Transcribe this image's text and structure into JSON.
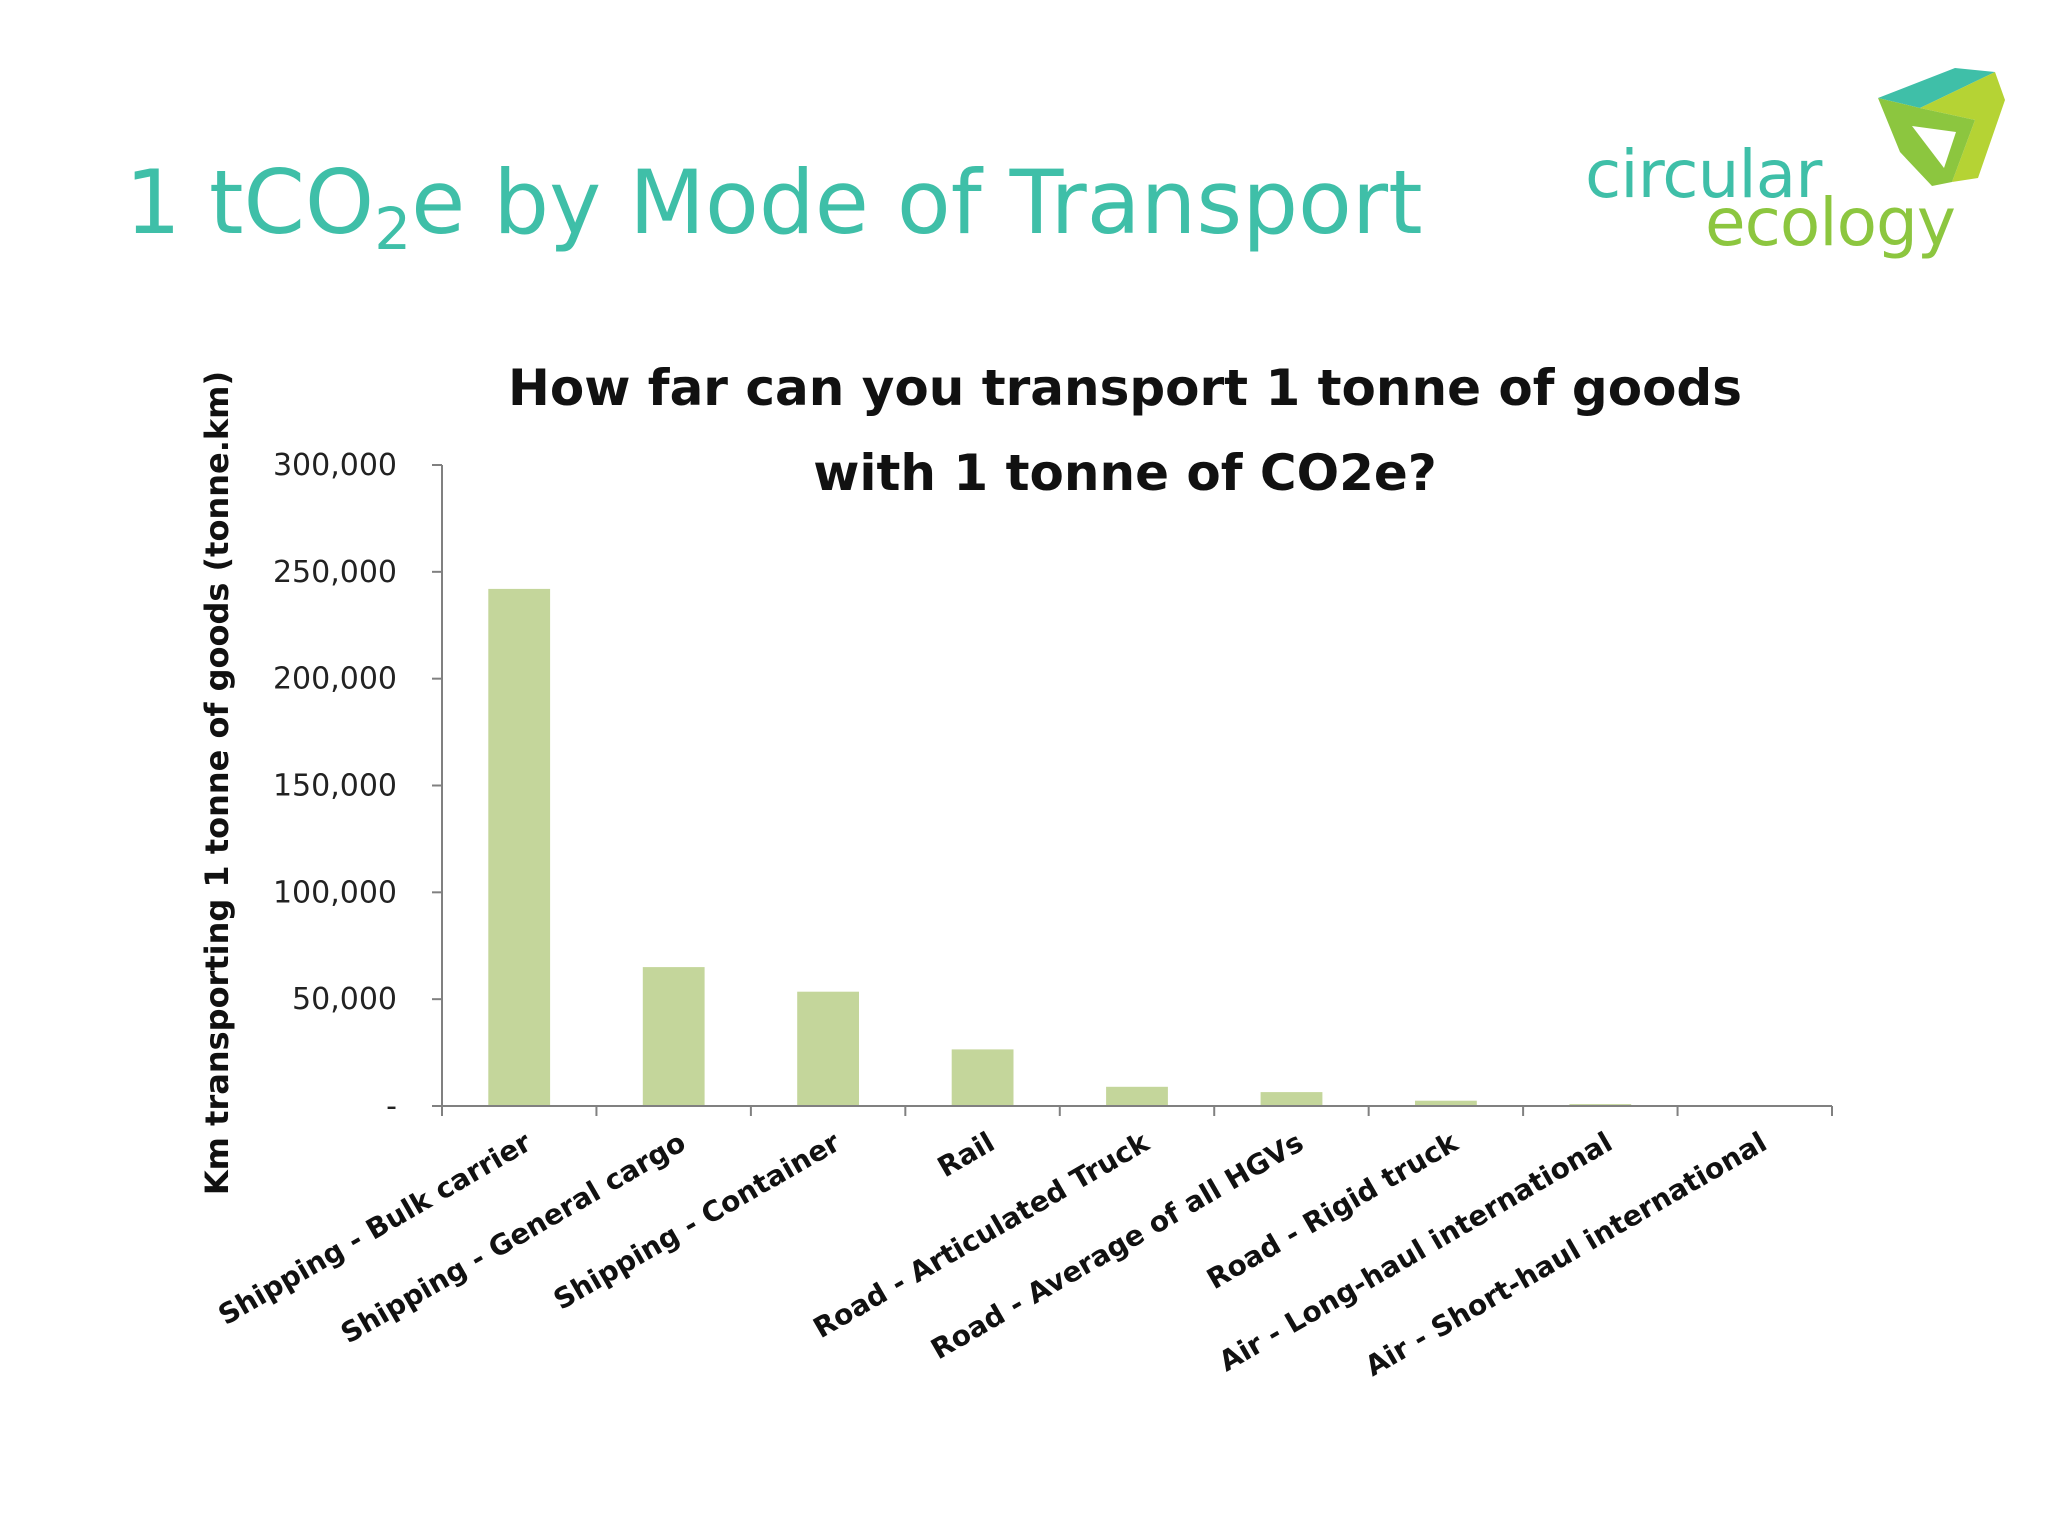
{
  "slide": {
    "title_main": "1 tCO",
    "title_sub": "2",
    "title_rest": "e by Mode of Transport"
  },
  "logo": {
    "word1": "circular",
    "word2": "ecology",
    "colors": {
      "teal": "#3fbfa8",
      "green": "#8cc63f",
      "lime": "#b5d334"
    }
  },
  "chart_data": {
    "type": "bar",
    "title_line1": "How far can you transport 1 tonne of goods",
    "title_line2": "with 1 tonne of CO2e?",
    "ylabel": "Km transporting 1 tonne of goods (tonne.km)",
    "xlabel": "",
    "ylim": [
      0,
      300000
    ],
    "yticks": [
      0,
      50000,
      100000,
      150000,
      200000,
      250000,
      300000
    ],
    "ytick_labels": [
      "-",
      "50,000",
      "100,000",
      "150,000",
      "200,000",
      "250,000",
      "300,000"
    ],
    "grid": false,
    "bar_color": "#c4d69b",
    "categories": [
      "Shipping - Bulk carrier",
      "Shipping - General cargo",
      "Shipping - Container",
      "Rail",
      "Road - Articulated Truck",
      "Road - Average of all HGVs",
      "Road - Rigid truck",
      "Air - Long-haul international",
      "Air - Short-haul international"
    ],
    "values": [
      242000,
      65000,
      53500,
      26500,
      9000,
      6500,
      2500,
      900,
      350
    ]
  }
}
